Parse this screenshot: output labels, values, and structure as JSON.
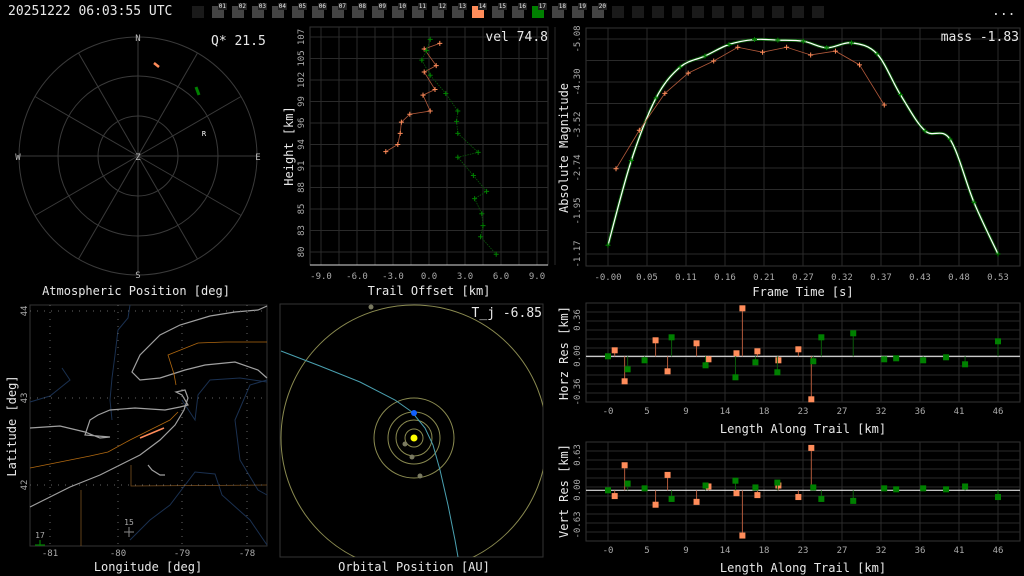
{
  "header": {
    "timestamp": "20251222 06:03:55 UTC",
    "menu_label": "..."
  },
  "stations": {
    "labels": [
      "01",
      "02",
      "03",
      "04",
      "05",
      "06",
      "07",
      "08",
      "09",
      "10",
      "11",
      "12",
      "13",
      "14",
      "15",
      "16",
      "17",
      "18",
      "19",
      "20"
    ],
    "highlight": {
      "14": "#ff8c5a",
      "17": "#008000"
    },
    "blank_after": 11
  },
  "colors": {
    "station_a": "#ff8c5a",
    "station_a_line": "#b0583a",
    "station_b": "#008000",
    "fit": "#ffffff",
    "grid": "#2a2a2a",
    "coast": "#a0a0a0",
    "border": "#8a5a1a",
    "river": "#1a3050",
    "orbit": "#8a8a50",
    "trajectory": "#4aa0b0",
    "earth": "#1060ff",
    "sun": "#ffff00"
  },
  "polar": {
    "title": "Atmospheric Position [deg]",
    "metric": "Q* 21.5",
    "labels": {
      "n": "N",
      "s": "S",
      "e": "E",
      "w": "W",
      "z": "Z",
      "r": "R"
    }
  },
  "trail": {
    "metric": "vel 74.8",
    "xlabel": "Trail Offset [km]",
    "ylabel": "Height [km]",
    "xticks": [
      "-9.0",
      "-6.0",
      "-3.0",
      "0.0",
      "3.0",
      "6.0",
      "9.0"
    ],
    "yticks": [
      "107",
      "105",
      "102",
      "99",
      "96",
      "94",
      "91",
      "88",
      "85",
      "83",
      "80"
    ]
  },
  "magnitude": {
    "metric": "mass -1.83",
    "xlabel": "Frame Time [s]",
    "ylabel": "Absolute Magnitude",
    "xticks": [
      "-0.00",
      "0.05",
      "0.11",
      "0.16",
      "0.21",
      "0.27",
      "0.32",
      "0.37",
      "0.43",
      "0.48",
      "0.53"
    ],
    "yticks": [
      "-5.08",
      "-4.30",
      "-3.52",
      "-2.74",
      "-1.95",
      "-1.17"
    ]
  },
  "map": {
    "xlabel": "Longitude [deg]",
    "ylabel": "Latitude [deg]",
    "xticks": [
      "-81",
      "-80",
      "-79",
      "-78"
    ],
    "yticks": [
      "44",
      "43",
      "42"
    ],
    "station_labels": [
      "17",
      "15"
    ]
  },
  "orbit": {
    "metric": "T_j -6.85",
    "xlabel": "Orbital Position [AU]"
  },
  "horz_res": {
    "xlabel": "Length Along Trail [km]",
    "ylabel": "Horz Res [km]",
    "yticks": [
      "0.36",
      "0.00",
      "-0.36"
    ],
    "xticks": [
      "-0",
      "5",
      "9",
      "14",
      "18",
      "23",
      "27",
      "32",
      "36",
      "41",
      "46"
    ]
  },
  "vert_res": {
    "xlabel": "Length Along Trail [km]",
    "ylabel": "Vert Res [km]",
    "yticks": [
      "0.63",
      "0.00",
      "-0.63"
    ],
    "xticks": [
      "-0",
      "5",
      "9",
      "14",
      "18",
      "23",
      "27",
      "32",
      "36",
      "41",
      "46"
    ]
  },
  "chart_data": [
    {
      "type": "scatter",
      "name": "trail-offset",
      "xlim": [
        -9.9,
        9.9
      ],
      "ylim": [
        79,
        108.5
      ],
      "grid": true,
      "series": [
        {
          "station": "14",
          "x": [
            0.9,
            -0.4,
            0.6,
            -0.4,
            0.5,
            -0.5,
            0.1,
            -1.6,
            -2.3,
            -2.4,
            -2.6,
            -3.6
          ],
          "y": [
            106.2,
            105.5,
            103.4,
            102.6,
            100.4,
            99.7,
            97.7,
            97.3,
            96.3,
            94.9,
            93.5,
            92.6
          ]
        },
        {
          "station": "17",
          "x": [
            0.1,
            -0.2,
            -0.6,
            0.1,
            1.4,
            2.4,
            2.3,
            2.4,
            4.1,
            2.4,
            3.7,
            4.8,
            3.8,
            4.4,
            4.5,
            4.3,
            5.6
          ],
          "y": [
            106.7,
            105.3,
            104.1,
            102.2,
            99.9,
            97.7,
            96.4,
            94.9,
            92.5,
            91.9,
            89.6,
            87.6,
            86.7,
            84.8,
            83.3,
            81.9,
            79.7
          ]
        }
      ]
    },
    {
      "type": "line",
      "name": "light-curve",
      "xlim": [
        -0.035,
        0.58
      ],
      "ylim": [
        -5.25,
        -0.75
      ],
      "y_inverted": true,
      "grid": true,
      "series": [
        {
          "station": "17",
          "x": [
            0,
            0.032,
            0.066,
            0.099,
            0.133,
            0.166,
            0.201,
            0.233,
            0.268,
            0.3,
            0.334,
            0.369,
            0.401,
            0.435,
            0.469,
            0.502,
            0.535
          ],
          "y": [
            -1.33,
            -2.87,
            -4.01,
            -4.57,
            -4.77,
            -4.98,
            -5.07,
            -5.06,
            -5.04,
            -4.92,
            -5.01,
            -4.81,
            -4.07,
            -3.41,
            -3.26,
            -2.11,
            -1.17
          ]
        },
        {
          "station": "14",
          "x": [
            0.011,
            0.043,
            0.078,
            0.11,
            0.145,
            0.178,
            0.212,
            0.245,
            0.278,
            0.312,
            0.345,
            0.379
          ],
          "y": [
            -2.72,
            -3.42,
            -4.09,
            -4.46,
            -4.68,
            -4.93,
            -4.84,
            -4.93,
            -4.79,
            -4.86,
            -4.61,
            -3.88
          ]
        }
      ]
    },
    {
      "type": "scatter",
      "name": "horizontal-residuals",
      "xlim": [
        -3.6,
        51.5
      ],
      "ylim": [
        -0.46,
        0.53
      ],
      "grid": true,
      "series": [
        {
          "station": "14",
          "x": [
            0.78,
            1.94,
            5.55,
            6.95,
            10.33,
            11.72,
            14.99,
            15.68,
            17.43,
            19.88,
            22.21,
            23.72
          ],
          "y": [
            0.06,
            -0.25,
            0.16,
            -0.15,
            0.13,
            -0.03,
            0.03,
            0.48,
            0.05,
            -0.04,
            0.07,
            -0.43
          ]
        },
        {
          "station": "17",
          "x": [
            0,
            2.29,
            4.27,
            7.42,
            11.38,
            14.87,
            17.2,
            19.76,
            23.95,
            24.89,
            28.61,
            32.22,
            33.62,
            36.77,
            39.44,
            41.66,
            45.5
          ],
          "y": [
            0,
            -0.13,
            -0.04,
            0.19,
            -0.09,
            -0.21,
            -0.06,
            -0.16,
            -0.05,
            0.19,
            0.23,
            -0.03,
            -0.02,
            -0.04,
            -0.01,
            -0.08,
            0.15
          ]
        }
      ]
    },
    {
      "type": "scatter",
      "name": "vertical-residuals",
      "xlim": [
        -3.6,
        51.5
      ],
      "ylim": [
        -0.95,
        0.9
      ],
      "grid": true,
      "series": [
        {
          "station": "14",
          "x": [
            0.78,
            1.94,
            5.55,
            6.95,
            10.33,
            11.72,
            14.99,
            15.68,
            17.43,
            19.88,
            22.21,
            23.72
          ],
          "y": [
            -0.107,
            0.464,
            -0.267,
            0.285,
            -0.214,
            0.071,
            -0.053,
            -0.838,
            -0.089,
            0.089,
            -0.125,
            0.785
          ]
        },
        {
          "station": "17",
          "x": [
            0,
            2.29,
            4.27,
            7.42,
            11.38,
            14.87,
            17.2,
            19.76,
            23.95,
            24.89,
            28.61,
            32.22,
            33.62,
            36.77,
            39.44,
            41.66,
            45.5
          ],
          "y": [
            0,
            0.125,
            0.036,
            -0.16,
            0.089,
            0.178,
            0.053,
            0.143,
            0.053,
            -0.16,
            -0.196,
            0.036,
            0.018,
            0.036,
            0.018,
            0.071,
            -0.125
          ]
        }
      ]
    }
  ]
}
